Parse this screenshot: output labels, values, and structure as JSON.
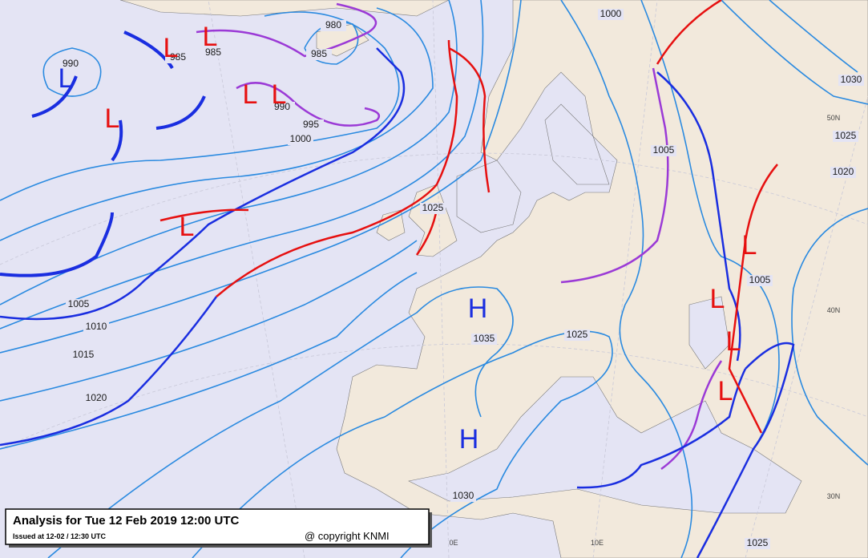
{
  "header": {
    "title": "Analysis for Tue 12 Feb 2019 12:00 UTC",
    "issued": "Issued at 12-02 / 12:30 UTC",
    "copyright": "@ copyright KNMI"
  },
  "isobar_labels": [
    "990",
    "985",
    "985",
    "980",
    "985",
    "990",
    "995",
    "1000",
    "1000",
    "1005",
    "1030",
    "1025",
    "1020",
    "1025",
    "1005",
    "1010",
    "1015",
    "1020",
    "1035",
    "1025",
    "1005",
    "1030",
    "1025"
  ],
  "pressure_centers": [
    {
      "label": "H",
      "color": "#1a2ee0"
    },
    {
      "label": "H",
      "color": "#1a2ee0"
    },
    {
      "label": "L",
      "color": "#1a2ee0"
    },
    {
      "label": "L",
      "color": "#e61010"
    },
    {
      "label": "L",
      "color": "#e61010"
    },
    {
      "label": "L",
      "color": "#e61010"
    },
    {
      "label": "L",
      "color": "#e61010"
    },
    {
      "label": "L",
      "color": "#e61010"
    },
    {
      "label": "L",
      "color": "#e61010"
    },
    {
      "label": "L",
      "color": "#e61010"
    },
    {
      "label": "L",
      "color": "#e61010"
    },
    {
      "label": "L",
      "color": "#e61010"
    },
    {
      "label": "L",
      "color": "#e61010"
    }
  ],
  "graticule_labels": [
    "50N",
    "40N",
    "30N",
    "0E",
    "10E"
  ]
}
